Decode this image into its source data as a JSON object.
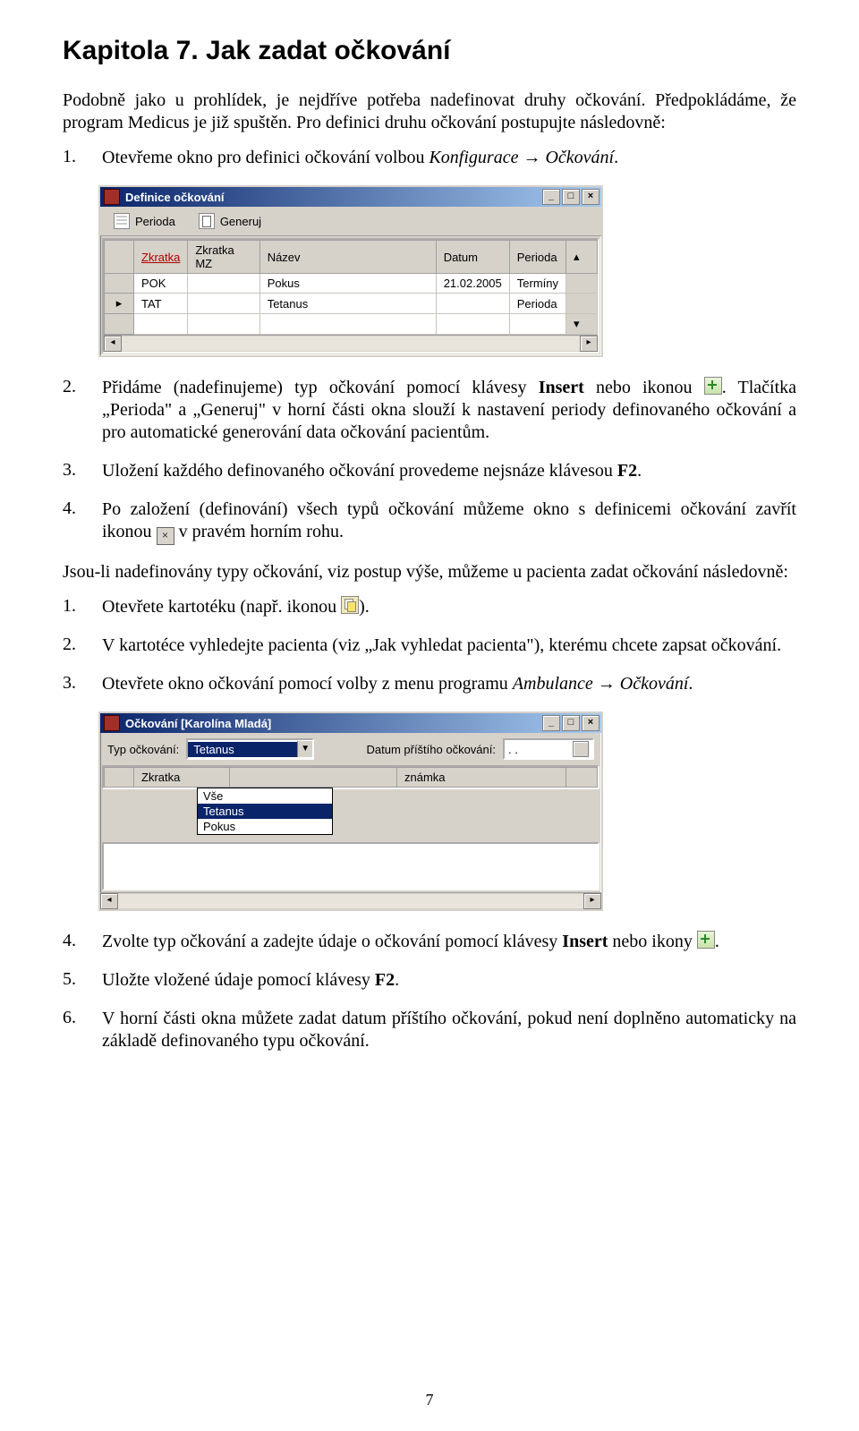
{
  "chapter": {
    "title": "Kapitola 7. Jak zadat očkování"
  },
  "intro": "Podobně jako u prohlídek, je nejdříve potřeba nadefinovat druhy očkování. Předpokládáme, že program Medicus je již spuštěn. Pro definici druhu očkování postupujte následovně:",
  "steps_a": [
    {
      "num": "1.",
      "pre": "Otevřeme okno pro definici očkování volbou ",
      "menu": "Konfigurace → Očkování",
      "post": "."
    },
    {
      "num": "2.",
      "pre": "Přidáme (nadefinujeme) typ očkování pomocí klávesy ",
      "bold": "Insert",
      "mid": " nebo ikonou ",
      "icon": "plus",
      "post": ". Tlačítka „Perioda\" a „Generuj\" v horní části okna slouží k nastavení periody definovaného očkování a pro automatické generování data očkování pacientům."
    },
    {
      "num": "3.",
      "pre": "Uložení každého definovaného očkování provedeme nejsnáze klávesou ",
      "bold": "F2",
      "post": "."
    },
    {
      "num": "4.",
      "pre": "Po založení (definování) všech typů očkování můžeme okno s definicemi očkování zavřít ikonou ",
      "icon": "close",
      "post": " v pravém horním rohu."
    }
  ],
  "between": "Jsou-li nadefinovány typy očkování, viz postup výše, můžeme u pacienta zadat očkování následovně:",
  "steps_b": [
    {
      "num": "1.",
      "pre": "Otevřete kartotéku (např. ikonou ",
      "icon": "cards",
      "post": ")."
    },
    {
      "num": "2.",
      "pre": "V kartotéce vyhledejte pacienta (viz „Jak vyhledat pacienta\"), kterému chcete zapsat očkování."
    },
    {
      "num": "3.",
      "pre": "Otevřete okno očkování pomocí volby z menu programu ",
      "menu": "Ambulance → Očkování",
      "post": "."
    }
  ],
  "steps_c": [
    {
      "num": "4.",
      "pre": "Zvolte typ očkování a zadejte údaje o očkování pomocí klávesy ",
      "bold": "Insert",
      "mid": " nebo ikony ",
      "icon": "plus",
      "post": "."
    },
    {
      "num": "5.",
      "pre": "Uložte vložené údaje pomocí klávesy ",
      "bold": "F2",
      "post": "."
    },
    {
      "num": "6.",
      "pre": "V horní části okna můžete zadat datum příštího očkování, pokud není doplněno automaticky na základě definovaného typu očkování."
    }
  ],
  "win1": {
    "title": "Definice očkování",
    "toolbar": {
      "perioda": "Perioda",
      "generuj": "Generuj"
    },
    "columns": {
      "marker": "",
      "zkratka": "Zkratka",
      "zkratka_mz": "Zkratka MZ",
      "nazev": "Název",
      "datum": "Datum",
      "perioda": "Perioda"
    },
    "rows": [
      {
        "marker": "",
        "zkratka": "POK",
        "zkratka_mz": "",
        "nazev": "Pokus",
        "datum": "21.02.2005",
        "perioda": "Termíny"
      },
      {
        "marker": "▸",
        "zkratka": "TAT",
        "zkratka_mz": "",
        "nazev": "Tetanus",
        "datum": "",
        "perioda": "Perioda"
      }
    ]
  },
  "win2": {
    "title": "Očkování [Karolína Mladá]",
    "labels": {
      "typ": "Typ očkování:",
      "datum": "Datum příštího očkování:"
    },
    "selected": "Tetanus",
    "date_value": ". .",
    "header_zkratka": "Zkratka",
    "header_znamka": "známka",
    "options": [
      "Vše",
      "Tetanus",
      "Pokus"
    ]
  },
  "page_number": "7",
  "colors": {
    "titlebar_start": "#0a246a",
    "titlebar_end": "#a6caf0",
    "win_face": "#d6d2ca",
    "link_red": "#b00000"
  }
}
